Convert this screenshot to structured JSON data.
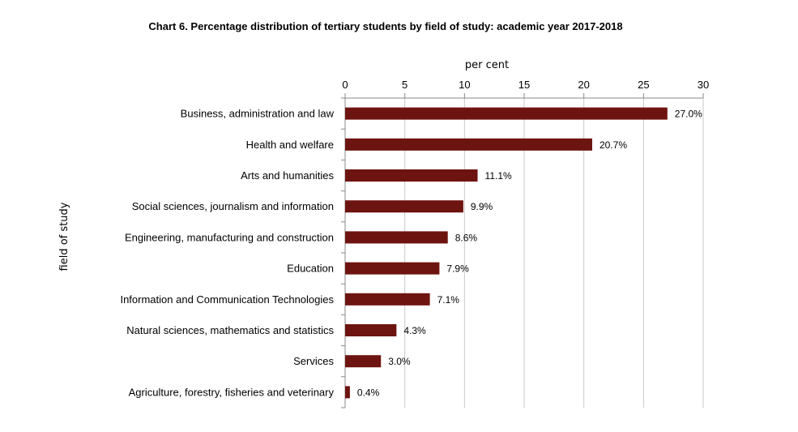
{
  "chart_data": {
    "type": "bar",
    "orientation": "horizontal",
    "title": "Chart 6. Percentage distribution of tertiary students by field of study: academic year 2017-2018",
    "xlabel": "per cent",
    "ylabel": "field of study",
    "xlim": [
      0,
      30
    ],
    "xticks": [
      "0",
      "5",
      "10",
      "15",
      "20",
      "25",
      "30"
    ],
    "x_axis_position": "top",
    "grid": "vertical",
    "categories": [
      "Business, administration and law",
      "Health and welfare",
      "Arts and humanities",
      "Social sciences, journalism and information",
      "Engineering, manufacturing and construction",
      "Education",
      "Information and Communication Technologies",
      "Natural sciences, mathematics and statistics",
      "Services",
      "Agriculture, forestry, fisheries and veterinary"
    ],
    "values": [
      27.0,
      20.7,
      11.1,
      9.9,
      8.6,
      7.9,
      7.1,
      4.3,
      3.0,
      0.4
    ],
    "data_labels": [
      "27.0%",
      "20.7%",
      "11.1%",
      "9.9%",
      "8.6%",
      "7.9%",
      "7.1%",
      "4.3%",
      "3.0%",
      "0.4%"
    ],
    "bar_color": "#6e1410",
    "grid_color": "#c8c8c8"
  }
}
